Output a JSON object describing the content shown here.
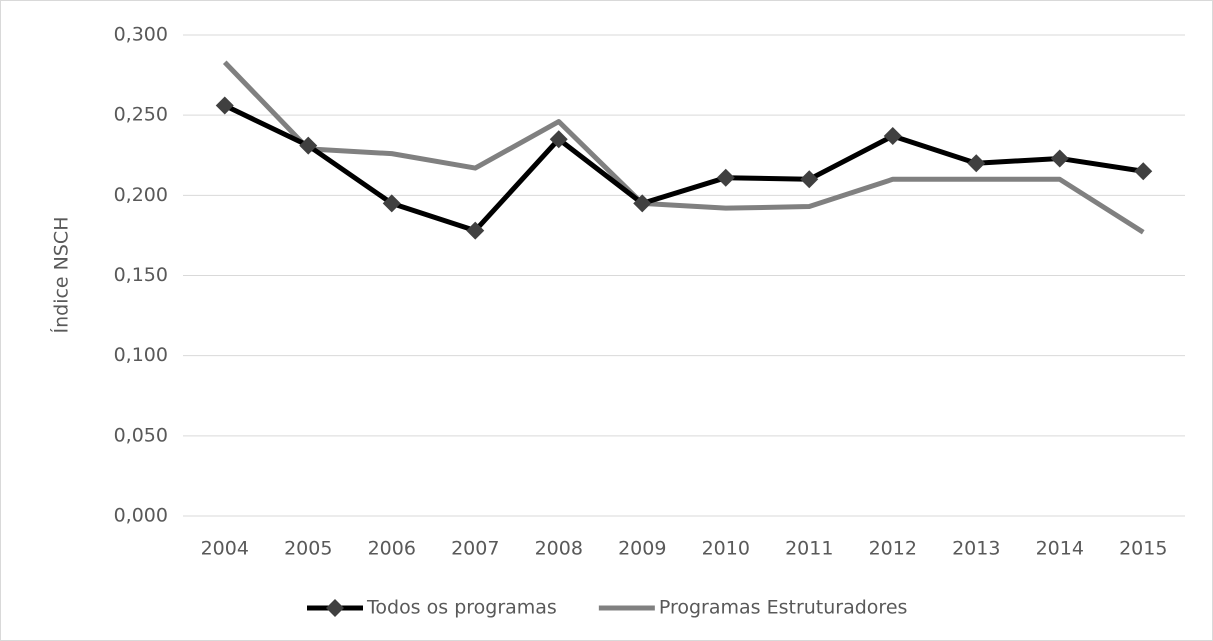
{
  "chart_data": {
    "type": "line",
    "y_label": "Índice NSCH",
    "categories": [
      "2004",
      "2005",
      "2006",
      "2007",
      "2008",
      "2009",
      "2010",
      "2011",
      "2012",
      "2013",
      "2014",
      "2015"
    ],
    "series": [
      {
        "name": "Todos os programas",
        "color": "#000000",
        "marker": "diamond",
        "values": [
          0.256,
          0.231,
          0.195,
          0.178,
          0.235,
          0.195,
          0.211,
          0.21,
          0.237,
          0.22,
          0.223,
          0.215
        ]
      },
      {
        "name": "Programas Estruturadores",
        "color": "#808080",
        "values": [
          0.283,
          0.229,
          0.226,
          0.217,
          0.246,
          0.195,
          0.192,
          0.193,
          0.21,
          0.21,
          0.21,
          0.177
        ]
      }
    ],
    "ylim": [
      0,
      0.3
    ],
    "yticks": [
      {
        "value": 0,
        "label": "0,000"
      },
      {
        "value": 0.05,
        "label": "0,050"
      },
      {
        "value": 0.1,
        "label": "0,100"
      },
      {
        "value": 0.15,
        "label": "0,150"
      },
      {
        "value": 0.2,
        "label": "0,200"
      },
      {
        "value": 0.25,
        "label": "0,250"
      },
      {
        "value": 0.3,
        "label": "0,300"
      }
    ],
    "grid": true,
    "legend": "bottom"
  }
}
